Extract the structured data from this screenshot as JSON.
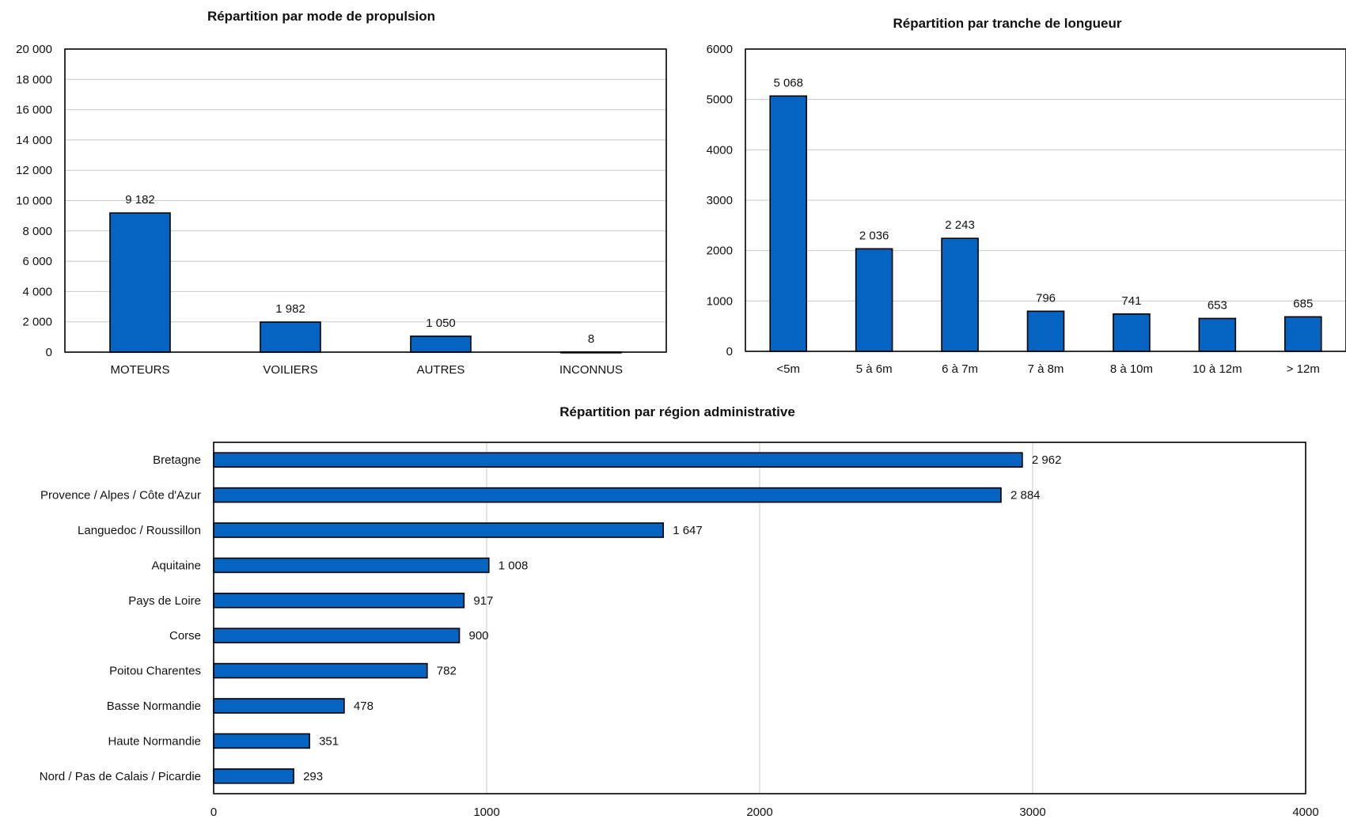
{
  "chart_data": [
    {
      "type": "bar",
      "title": "Répartition par mode de propulsion",
      "categories": [
        "MOTEURS",
        "VOILIERS",
        "AUTRES",
        "INCONNUS"
      ],
      "values": [
        9182,
        1982,
        1050,
        8
      ],
      "data_labels": [
        "9 182",
        "1 982",
        "1 050",
        "8"
      ],
      "ylim": [
        0,
        20000
      ],
      "yticks": [
        0,
        2000,
        4000,
        6000,
        8000,
        10000,
        12000,
        14000,
        16000,
        18000,
        20000
      ],
      "ytick_labels": [
        "0",
        "2 000",
        "4 000",
        "6 000",
        "8 000",
        "10 000",
        "12 000",
        "14 000",
        "16 000",
        "18 000",
        "20 000"
      ],
      "grid": true,
      "bar_color": "#0563c1"
    },
    {
      "type": "bar",
      "title": "Répartition par tranche de longueur",
      "categories": [
        "<5m",
        "5 à 6m",
        "6 à 7m",
        "7 à 8m",
        "8 à 10m",
        "10 à 12m",
        "> 12m"
      ],
      "values": [
        5068,
        2036,
        2243,
        796,
        741,
        653,
        685
      ],
      "data_labels": [
        "5 068",
        "2 036",
        "2 243",
        "796",
        "741",
        "653",
        "685"
      ],
      "ylim": [
        0,
        6000
      ],
      "yticks": [
        0,
        1000,
        2000,
        3000,
        4000,
        5000,
        6000
      ],
      "ytick_labels": [
        "0",
        "1000",
        "2000",
        "3000",
        "4000",
        "5000",
        "6000"
      ],
      "grid": true,
      "bar_color": "#0563c1"
    },
    {
      "type": "bar",
      "orientation": "horizontal",
      "title": "Répartition par région administrative",
      "categories": [
        "Bretagne",
        "Provence / Alpes / Côte d'Azur",
        "Languedoc / Roussillon",
        "Aquitaine",
        "Pays de Loire",
        "Corse",
        "Poitou Charentes",
        "Basse Normandie",
        "Haute Normandie",
        "Nord / Pas de Calais / Picardie"
      ],
      "values": [
        2962,
        2884,
        1647,
        1008,
        917,
        900,
        782,
        478,
        351,
        293
      ],
      "data_labels": [
        "2 962",
        "2 884",
        "1 647",
        "1 008",
        "917",
        "900",
        "782",
        "478",
        "351",
        "293"
      ],
      "xlim": [
        0,
        4000
      ],
      "xticks": [
        0,
        1000,
        2000,
        3000,
        4000
      ],
      "xtick_labels": [
        "0",
        "1000",
        "2000",
        "3000",
        "4000"
      ],
      "grid": true,
      "bar_color": "#0563c1"
    }
  ]
}
